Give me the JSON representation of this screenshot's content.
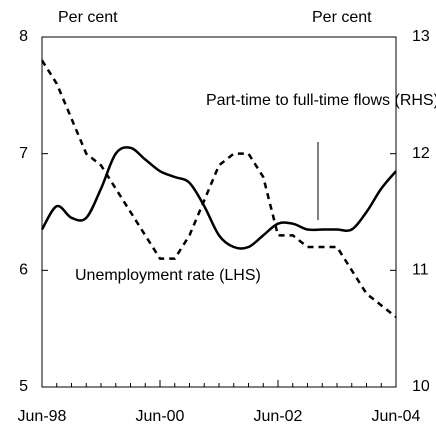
{
  "chart_data": {
    "type": "line",
    "annotations": [
      "Per cent",
      "Per cent",
      "Part-time to full-time flows (RHS)",
      "Unemployment rate (LHS)"
    ],
    "categories": [
      "Jun-98",
      null,
      null,
      null,
      null,
      null,
      null,
      null,
      "Jun-00",
      null,
      null,
      null,
      null,
      null,
      null,
      null,
      "Jun-02",
      null,
      null,
      null,
      null,
      null,
      null,
      null,
      "Jun-04"
    ],
    "series": [
      {
        "name": "Unemployment rate (LHS)",
        "color": "#000000",
        "style": "solid",
        "values": [
          6.35,
          6.55,
          6.45,
          6.45,
          6.7,
          7.0,
          7.05,
          6.95,
          6.85,
          6.8,
          6.75,
          6.55,
          6.3,
          6.2,
          6.2,
          6.3,
          6.4,
          6.4,
          6.35,
          6.35,
          6.35,
          6.35,
          6.5,
          6.7,
          6.85
        ]
      },
      {
        "name": "Part-time to full-time flows (RHS)",
        "color": "#000000",
        "style": "dashed",
        "axis": "y2",
        "values": [
          12.8,
          12.6,
          12.3,
          12.0,
          11.9,
          11.7,
          11.5,
          11.3,
          11.1,
          11.1,
          11.3,
          11.6,
          11.9,
          12.0,
          12.0,
          11.8,
          11.3,
          11.3,
          11.2,
          11.2,
          11.2,
          11.0,
          10.8,
          10.7,
          10.6
        ]
      }
    ],
    "ylim": [
      5,
      8
    ],
    "yticks": [
      5,
      6,
      7,
      8
    ],
    "y2lim": [
      10,
      13
    ],
    "y2ticks": [
      10,
      11,
      12,
      13
    ]
  }
}
